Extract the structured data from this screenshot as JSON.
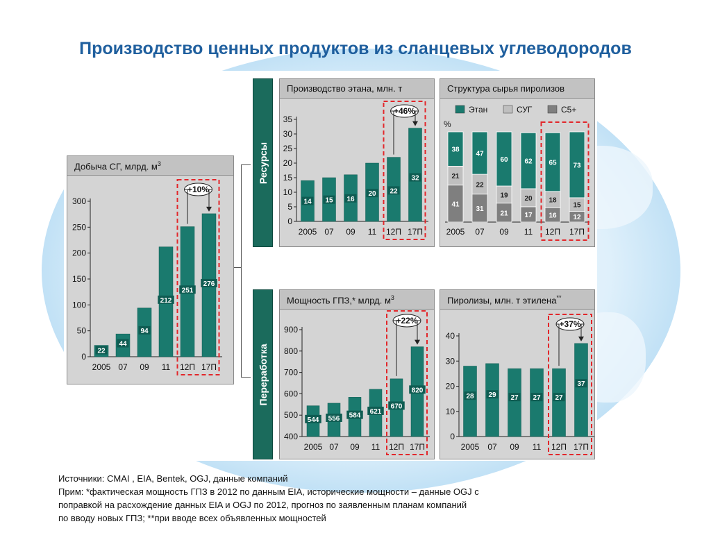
{
  "slide": {
    "title": "Производство ценных продуктов из сланцевых углеводородов",
    "colors": {
      "bar": "#1a7a6e",
      "bar_dark": "#0f5c52",
      "lpg": "#bfbfbf",
      "c5": "#7f7f7f",
      "highlight": "#e2262a",
      "side": "#1b6b5c",
      "title": "#1f5f9e"
    },
    "side_labels": {
      "resources": "Ресурсы",
      "processing": "Переработка"
    }
  },
  "sources": {
    "line1": "Источники: CMAI , EIA, Bentek, OGJ, данные компаний",
    "line2": "Прим: *фактическая мощность ГПЗ в 2012 по данным EIA, исторические мощности – данные OGJ с",
    "line3": "поправкой на расхождение данных EIA и OGJ по 2012, прогноз по заявленным планам компаний",
    "line4": "по вводу новых ГПЗ; **при вводе всех объявленных мощностей"
  },
  "chart_data": [
    {
      "id": "gas",
      "type": "bar",
      "title": "Добыча СГ, млрд. м",
      "title_sup": "3",
      "categories": [
        "2005",
        "07",
        "09",
        "11",
        "12П",
        "17П"
      ],
      "values": [
        22,
        44,
        94,
        212,
        251,
        276
      ],
      "ylim": [
        0,
        300
      ],
      "yticks": [
        0,
        50,
        100,
        150,
        200,
        250,
        300
      ],
      "highlight": {
        "from": 4,
        "to": 5,
        "label": "+10%"
      }
    },
    {
      "id": "ethane",
      "type": "bar",
      "title": "Производство этана, млн. т",
      "title_sup": "",
      "categories": [
        "2005",
        "07",
        "09",
        "11",
        "12П",
        "17П"
      ],
      "values": [
        14,
        15,
        16,
        20,
        22,
        32
      ],
      "value_labels": [
        "14",
        "15",
        "16",
        "20",
        "22",
        "32"
      ],
      "ylim": [
        0,
        35
      ],
      "yticks": [
        0,
        5,
        10,
        15,
        20,
        25,
        30,
        35
      ],
      "highlight": {
        "from": 4,
        "to": 5,
        "label": "+46%"
      }
    },
    {
      "id": "feedstock",
      "type": "stacked-bar",
      "title": "Структура сырья пиролизов",
      "title_sup": "",
      "unit": "%",
      "categories": [
        "2005",
        "07",
        "09",
        "11",
        "12П",
        "17П"
      ],
      "series": [
        {
          "name": "С5+",
          "values": [
            41,
            31,
            21,
            17,
            16,
            12
          ]
        },
        {
          "name": "СУГ",
          "values": [
            21,
            22,
            19,
            20,
            18,
            15
          ]
        },
        {
          "name": "Этан",
          "values": [
            38,
            47,
            60,
            62,
            65,
            73
          ]
        }
      ],
      "legend": [
        "Этан",
        "СУГ",
        "С5+"
      ],
      "highlight": {
        "from": 4,
        "to": 5,
        "label": ""
      }
    },
    {
      "id": "gpz",
      "type": "bar",
      "title": "Мощность ГПЗ,",
      "title_star": "*",
      "title_tail": " млрд. м",
      "title_sup": "3",
      "categories": [
        "2005",
        "07",
        "09",
        "11",
        "12П",
        "17П"
      ],
      "values": [
        544,
        556,
        584,
        621,
        670,
        820
      ],
      "ylim": [
        400,
        900
      ],
      "yticks": [
        400,
        500,
        600,
        700,
        800,
        900
      ],
      "highlight": {
        "from": 4,
        "to": 5,
        "label": "+22%"
      }
    },
    {
      "id": "pyrolysis",
      "type": "bar",
      "title": "Пиролизы, млн. т этилена",
      "title_sup": "**",
      "categories": [
        "2005",
        "07",
        "09",
        "11",
        "12П",
        "17П"
      ],
      "values": [
        28,
        29,
        27,
        27,
        27,
        37
      ],
      "ylim": [
        0,
        40
      ],
      "yticks": [
        0,
        10,
        20,
        30,
        40
      ],
      "highlight": {
        "from": 4,
        "to": 5,
        "label": "+37%"
      }
    }
  ]
}
